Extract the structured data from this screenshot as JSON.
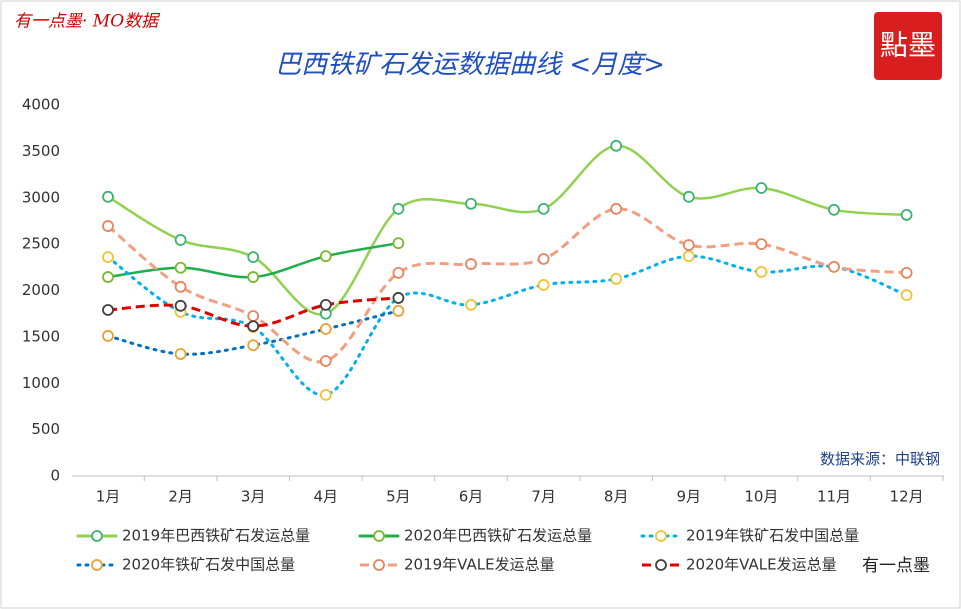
{
  "header": {
    "brand": "有一点墨· MO数据",
    "stamp": "點墨",
    "source": "数据来源：中联钢",
    "watermark": "有一点墨"
  },
  "chart_data": {
    "type": "line",
    "title": "巴西铁矿石发运数据曲线 <月度>",
    "categories": [
      "1月",
      "2月",
      "3月",
      "4月",
      "5月",
      "6月",
      "7月",
      "8月",
      "9月",
      "10月",
      "11月",
      "12月"
    ],
    "ylim": [
      0,
      4000
    ],
    "yticks": [
      0,
      500,
      1000,
      1500,
      2000,
      2500,
      3000,
      3500,
      4000
    ],
    "smooth": true,
    "series": [
      {
        "name": "2019年巴西铁矿石发运总量",
        "color": "#92d050",
        "marker_color": "#3cb371",
        "dash": "solid",
        "values": [
          3010,
          2545,
          2360,
          1750,
          2880,
          2935,
          2880,
          3560,
          3010,
          3105,
          2870,
          2815
        ]
      },
      {
        "name": "2020年巴西铁矿石发运总量",
        "color": "#1fae4b",
        "marker_color": "#7cb82f",
        "dash": "solid",
        "values": [
          2145,
          2245,
          2145,
          2370,
          2510,
          null,
          null,
          null,
          null,
          null,
          null,
          null
        ]
      },
      {
        "name": "2019年铁矿石发中国总量",
        "color": "#00b0f0",
        "marker_color": "#f2c230",
        "dash": "dot",
        "values": [
          2360,
          1770,
          1605,
          875,
          1920,
          1845,
          2060,
          2125,
          2370,
          2200,
          2255,
          1950
        ]
      },
      {
        "name": "2020年铁矿石发中国总量",
        "color": "#0070c0",
        "marker_color": "#e8a030",
        "dash": "dot",
        "values": [
          1510,
          1315,
          1410,
          1585,
          1780,
          null,
          null,
          null,
          null,
          null,
          null,
          null
        ]
      },
      {
        "name": "2019年VALE发运总量",
        "color": "#f0a080",
        "marker_color": "#e8835e",
        "dash": "dash",
        "values": [
          2695,
          2040,
          1725,
          1240,
          2190,
          2285,
          2340,
          2880,
          2490,
          2500,
          2255,
          2190
        ]
      },
      {
        "name": "2020年VALE发运总量",
        "color": "#e00000",
        "marker_color": "#404040",
        "dash": "dash",
        "values": [
          1790,
          1835,
          1615,
          1845,
          1920,
          null,
          null,
          null,
          null,
          null,
          null,
          null
        ]
      }
    ]
  }
}
